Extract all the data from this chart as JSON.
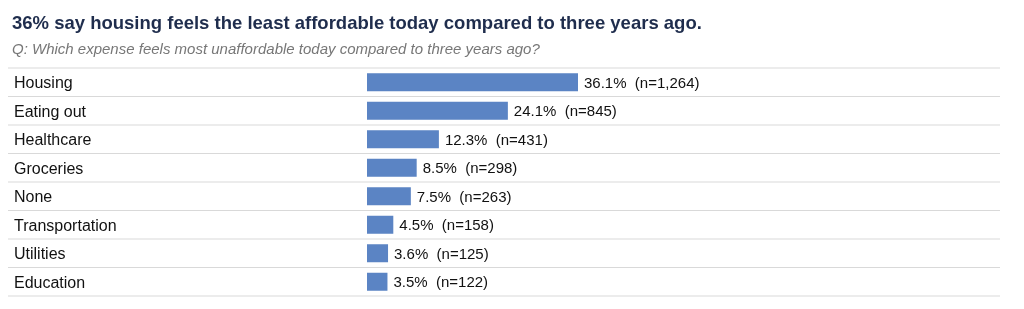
{
  "chart_data": {
    "type": "bar",
    "orientation": "horizontal",
    "title": "36% say housing feels the least affordable today compared to three years ago.",
    "subtitle": "Q: Which expense feels most unaffordable today compared to three years ago?",
    "categories": [
      "Housing",
      "Eating out",
      "Healthcare",
      "Groceries",
      "None",
      "Transportation",
      "Utilities",
      "Education"
    ],
    "values": [
      36.1,
      24.1,
      12.3,
      8.5,
      7.5,
      4.5,
      3.6,
      3.5
    ],
    "value_labels": [
      "36.1%  (n=1,264)",
      "24.1%  (n=845)",
      "12.3%  (n=431)",
      "8.5%  (n=298)",
      "7.5%  (n=263)",
      "4.5%  (n=158)",
      "3.6%  (n=125)",
      "3.5%  (n=122)"
    ],
    "color": "#5b84c4"
  }
}
